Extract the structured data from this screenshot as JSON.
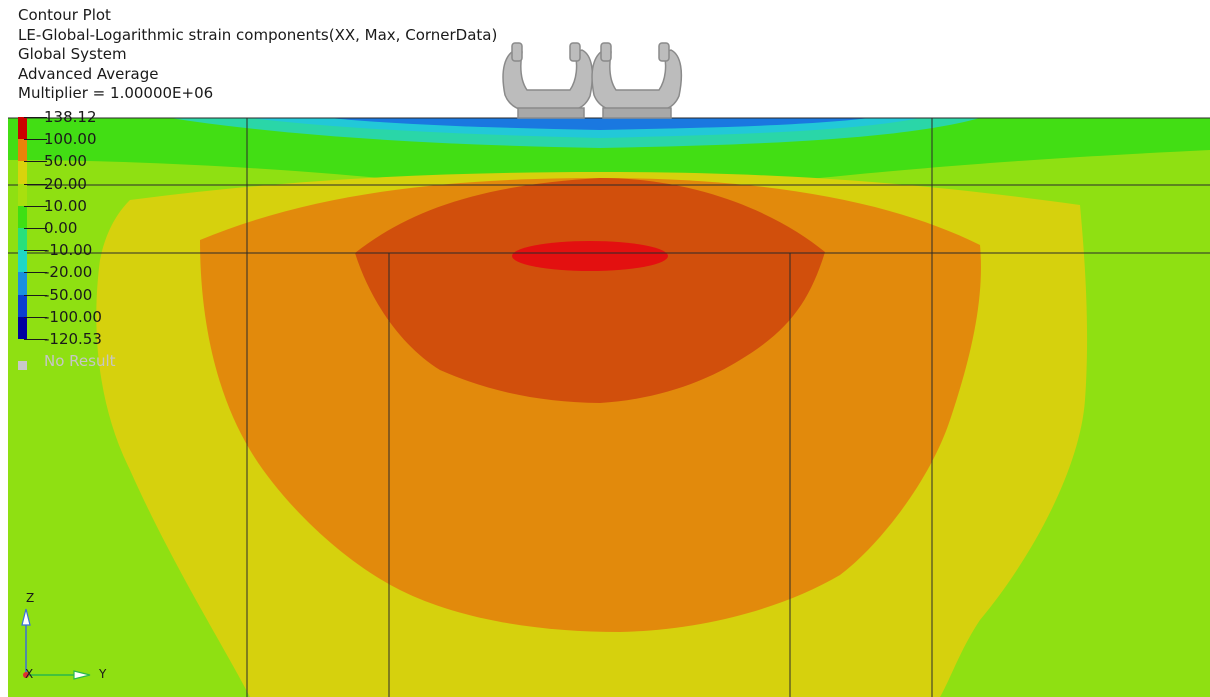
{
  "header": {
    "lines": [
      "Contour Plot",
      "LE-Global-Logarithmic strain components(XX, Max, CornerData)",
      "Global System",
      "Advanced Average",
      "Multiplier = 1.00000E+06"
    ]
  },
  "legend": {
    "levels": [
      {
        "label": "138.12",
        "color": "#cc0000"
      },
      {
        "label": "100.00",
        "color": "#d81a00"
      },
      {
        "label": "50.00",
        "color": "#e8820a"
      },
      {
        "label": "20.00",
        "color": "#d9d30c"
      },
      {
        "label": "10.00",
        "color": "#a8e00e"
      },
      {
        "label": "0.00",
        "color": "#3ee014"
      },
      {
        "label": "-10.00",
        "color": "#29e07a"
      },
      {
        "label": "-20.00",
        "color": "#1fd7c6"
      },
      {
        "label": "-50.00",
        "color": "#1a8fe0"
      },
      {
        "label": "-100.00",
        "color": "#0a3fd0"
      },
      {
        "label": "-120.53",
        "color": "#0000a0"
      }
    ],
    "no_result": "No Result",
    "no_result_color": "#c8c8c8"
  },
  "triad": {
    "z": "Z",
    "x": "X",
    "y": "Y"
  },
  "colors": {
    "background": "#ffffff",
    "band_outer": "#8fe012",
    "band_yellow": "#d6d10d",
    "band_orange": "#e28a0c",
    "band_dark_orange": "#d14f0c",
    "band_red": "#e31010",
    "band_green": "#42de14",
    "band_teal": "#2ad6a8",
    "band_cyan": "#22c8d8",
    "band_blue": "#1a78e0",
    "gridline": "#2a2a2a",
    "tire": "#bcbcbc"
  }
}
